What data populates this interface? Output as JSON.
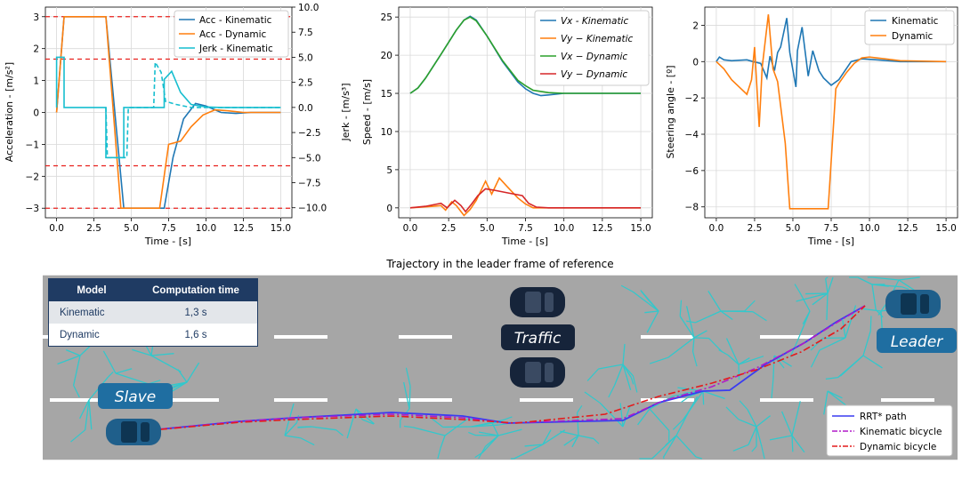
{
  "chart_data": [
    {
      "type": "line",
      "xlabel": "Time - [s]",
      "ylabel": "Acceleration - [m/s²]",
      "y2label": "Jerk - [m/s³]",
      "xlim": [
        -0.75,
        15.75
      ],
      "ylim": [
        -3.3,
        3.3
      ],
      "y2lim": [
        -11,
        10
      ],
      "xticks": [
        "0.0",
        "2.5",
        "5.0",
        "7.5",
        "10.0",
        "12.5",
        "15.0"
      ],
      "yticks": [
        "−3",
        "−2",
        "−1",
        "0",
        "1",
        "2",
        "3"
      ],
      "y2ticks": [
        "−10.0",
        "−7.5",
        "−5.0",
        "−2.5",
        "0.0",
        "2.5",
        "5.0",
        "7.5",
        "10.0"
      ],
      "legend": [
        "Acc - Kinematic",
        "Acc - Dynamic",
        "Jerk - Kinematic"
      ],
      "grid": true,
      "hlines": [
        3,
        1.67,
        -1.67,
        -3
      ],
      "series": [
        {
          "name": "Acc - Kinematic",
          "color": "#1f77b4",
          "axis": "left",
          "x": [
            0,
            0.5,
            3.3,
            4.5,
            7.2,
            7.8,
            8.5,
            9.3,
            10,
            11,
            12,
            13,
            15
          ],
          "y": [
            0,
            3,
            3,
            -3,
            -3,
            -1.4,
            -0.2,
            0.28,
            0.2,
            0,
            -0.03,
            0,
            0
          ]
        },
        {
          "name": "Acc - Dynamic",
          "color": "#ff7f0e",
          "axis": "left",
          "x": [
            0,
            0.5,
            3.3,
            4.3,
            6.9,
            7.5,
            8.3,
            9,
            9.8,
            10.6,
            11.5,
            12.5,
            15
          ],
          "y": [
            0,
            3,
            3,
            -3,
            -3,
            -1.0,
            -0.9,
            -0.45,
            -0.08,
            0.08,
            0.05,
            0,
            0
          ]
        },
        {
          "name": "Jerk - Kinematic",
          "color": "#17becf",
          "axis": "right",
          "x": [
            0,
            0,
            0.5,
            0.5,
            3.3,
            3.3,
            4.5,
            4.5,
            7.2,
            7.2,
            7.7,
            8.3,
            9,
            10,
            11,
            15
          ],
          "y": [
            0,
            5,
            5,
            0,
            0,
            -5,
            -5,
            0,
            0,
            2.8,
            3.6,
            1.5,
            0.3,
            0.05,
            0,
            0
          ]
        },
        {
          "name": "",
          "color": "#17becf",
          "axis": "right",
          "dashed": true,
          "x": [
            3.3,
            3.4,
            4.7,
            4.8,
            6.5,
            6.6,
            7.0,
            7.3,
            8.0,
            9.0,
            15
          ],
          "y": [
            0,
            -5,
            -5,
            0,
            0,
            4.5,
            3.5,
            0.6,
            0.3,
            0,
            0
          ]
        }
      ]
    },
    {
      "type": "line",
      "xlabel": "Time - [s]",
      "ylabel": "Speed - [m/s]",
      "xlim": [
        -0.75,
        15.75
      ],
      "ylim": [
        -1.3,
        26.3
      ],
      "xticks": [
        "0.0",
        "2.5",
        "5.0",
        "7.5",
        "10.0",
        "12.5",
        "15.0"
      ],
      "yticks": [
        "0",
        "5",
        "10",
        "15",
        "20",
        "25"
      ],
      "legend": [
        "Vx - Kinematic",
        "Vy − Kinematic",
        "Vx − Dynamic",
        "Vy − Dynamic"
      ],
      "grid": true,
      "series": [
        {
          "name": "Vx - Kinematic",
          "color": "#1f77b4",
          "x": [
            0,
            0.5,
            1,
            2,
            3,
            3.5,
            3.9,
            4.3,
            5,
            6,
            7,
            7.5,
            8,
            8.5,
            9,
            10,
            12,
            15
          ],
          "y": [
            15,
            15.7,
            17,
            20.1,
            23.3,
            24.6,
            25.1,
            24.6,
            22.5,
            19.2,
            16.5,
            15.6,
            15,
            14.7,
            14.8,
            15,
            15,
            15
          ]
        },
        {
          "name": "Vy − Kinematic",
          "color": "#ff7f0e",
          "x": [
            0,
            1.5,
            2,
            2.3,
            2.7,
            3,
            3.5,
            3.9,
            4.3,
            4.9,
            5.3,
            5.8,
            6.3,
            7,
            7.5,
            8,
            9,
            15
          ],
          "y": [
            0,
            0.2,
            0.3,
            -0.3,
            0.8,
            0.3,
            -1.0,
            -0.2,
            1.0,
            3.5,
            1.8,
            3.9,
            2.8,
            1.3,
            0.5,
            0,
            0,
            0
          ]
        },
        {
          "name": "Vx − Dynamic",
          "color": "#2ca02c",
          "x": [
            0,
            0.5,
            1,
            2,
            3,
            3.5,
            3.9,
            4.3,
            5,
            6,
            7,
            7.5,
            8,
            9,
            10,
            12,
            15
          ],
          "y": [
            15,
            15.7,
            17,
            20.1,
            23.3,
            24.6,
            25,
            24.5,
            22.5,
            19.3,
            16.7,
            16,
            15.4,
            15.1,
            15,
            15,
            15
          ]
        },
        {
          "name": "Vy − Dynamic",
          "color": "#d62728",
          "x": [
            0,
            1,
            2,
            2.4,
            2.9,
            3.3,
            3.6,
            4,
            4.4,
            4.9,
            5.5,
            6.5,
            7.3,
            7.7,
            8.2,
            9,
            15
          ],
          "y": [
            0,
            0.2,
            0.6,
            0,
            1.0,
            0.3,
            -0.5,
            0.5,
            1.6,
            2.5,
            2.3,
            1.9,
            1.6,
            0.6,
            0.1,
            0,
            0
          ]
        }
      ]
    },
    {
      "type": "line",
      "xlabel": "Time - [s]",
      "ylabel": "Steering angle - [º]",
      "xlim": [
        -0.75,
        15.75
      ],
      "ylim": [
        -8.6,
        3.0
      ],
      "xticks": [
        "0.0",
        "2.5",
        "5.0",
        "7.5",
        "10.0",
        "12.5",
        "15.0"
      ],
      "yticks": [
        "−8",
        "−6",
        "−4",
        "−2",
        "0",
        "2"
      ],
      "legend": [
        "Kinematic",
        "Dynamic"
      ],
      "grid": true,
      "series": [
        {
          "name": "Kinematic",
          "color": "#1f77b4",
          "x": [
            0,
            0.2,
            0.5,
            1,
            2,
            2.4,
            2.9,
            3.3,
            3.5,
            3.8,
            4,
            4.2,
            4.6,
            4.8,
            5.2,
            5.3,
            5.6,
            6,
            6.3,
            6.7,
            7,
            7.5,
            8,
            8.8,
            9.5,
            10.5,
            12,
            15
          ],
          "y": [
            0,
            0.25,
            0.1,
            0.05,
            0.1,
            0,
            -0.1,
            -0.9,
            0.3,
            -0.5,
            0.5,
            0.8,
            2.4,
            0.5,
            -1.4,
            0.6,
            1.9,
            -0.8,
            0.6,
            -0.5,
            -0.9,
            -1.3,
            -1.0,
            0,
            0.15,
            0.1,
            0,
            0
          ]
        },
        {
          "name": "Dynamic",
          "color": "#ff7f0e",
          "x": [
            0,
            0.5,
            1,
            1.5,
            2,
            2.3,
            2.5,
            2.8,
            3,
            3.4,
            3.7,
            4,
            4.5,
            4.8,
            5.5,
            6,
            7,
            7.3,
            7.8,
            8,
            8.5,
            9,
            9.5,
            10,
            11,
            12,
            15
          ],
          "y": [
            0,
            -0.4,
            -1.0,
            -1.4,
            -1.8,
            -1.0,
            0.8,
            -3.6,
            -0.3,
            2.6,
            -0.4,
            -1.1,
            -4.5,
            -8.1,
            -8.1,
            -8.1,
            -8.1,
            -8.1,
            -1.5,
            -1.2,
            -0.6,
            -0.1,
            0.2,
            0.25,
            0.15,
            0.05,
            0
          ]
        }
      ]
    }
  ],
  "trajectory": {
    "title": "Trajectory in the leader frame of reference",
    "labels": {
      "slave": "Slave",
      "traffic": "Traffic",
      "leader": "Leader"
    },
    "legend": [
      "RRT* path",
      "Kinematic bicycle",
      "Dynamic bicycle"
    ],
    "colors": {
      "rrt": "#3a3cf0",
      "kinematic": "#b01ac8",
      "dynamic": "#e41a1c",
      "tree": "#32c8cc",
      "road": "#a6a6a6",
      "car": "#1f5f8b",
      "traffic_car": "#16243a"
    }
  },
  "table": {
    "headers": [
      "Model",
      "Computation time"
    ],
    "rows": [
      {
        "model": "Kinematic",
        "time": "1,3 s"
      },
      {
        "model": "Dynamic",
        "time": "1,6 s"
      }
    ]
  }
}
